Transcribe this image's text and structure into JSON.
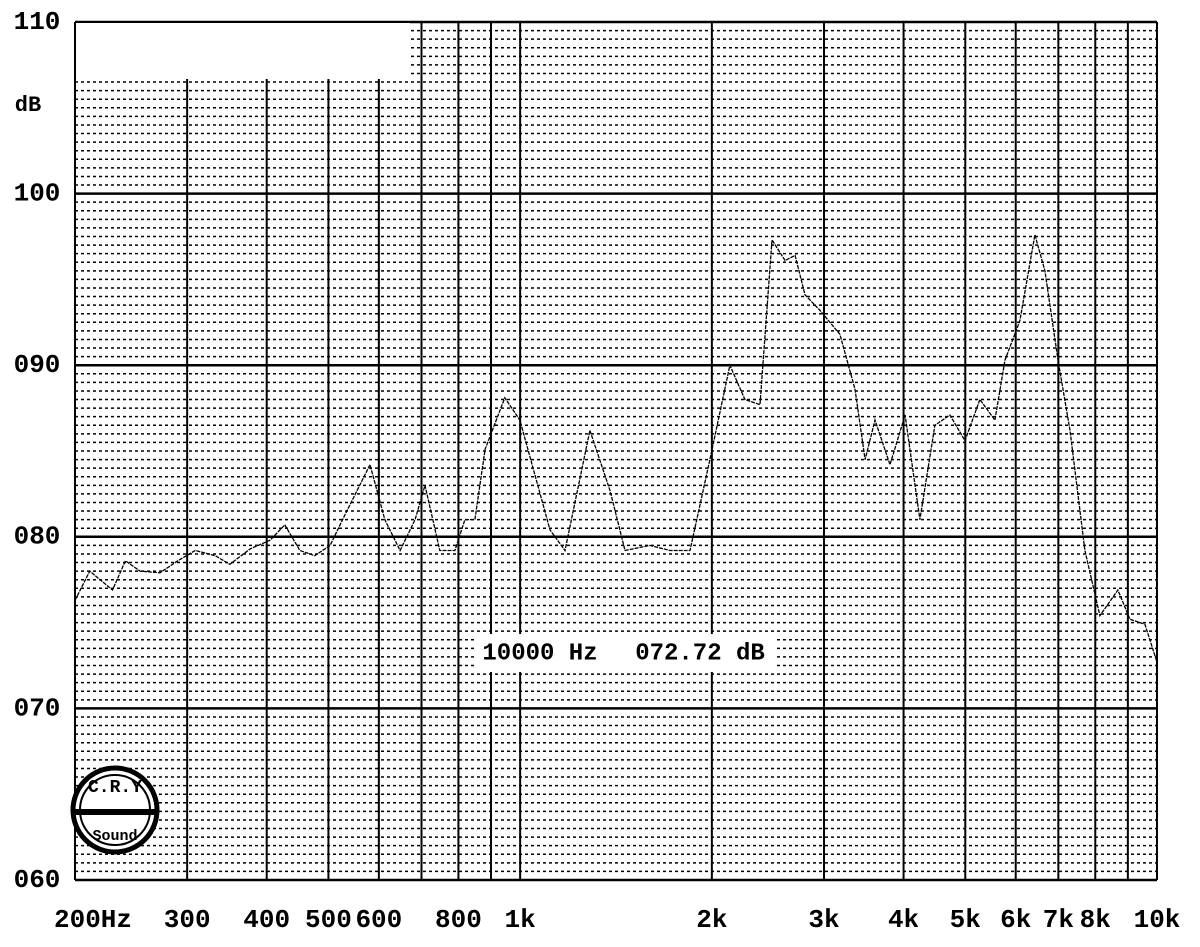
{
  "chart_data": {
    "type": "line",
    "y_label": "dB",
    "color": "#000000",
    "log_x": true,
    "grid": true,
    "ygrid_minor_step": 0.5,
    "xlim": [
      200,
      10000
    ],
    "ylim": [
      60,
      110
    ],
    "yticks": [
      110,
      100,
      {
        "value": 90,
        "label": "090"
      },
      {
        "value": 80,
        "label": "080"
      },
      {
        "value": 70,
        "label": "070"
      },
      {
        "value": 60,
        "label": "060"
      }
    ],
    "xticks": [
      {
        "value": 200,
        "label": "200Hz"
      },
      300,
      400,
      500,
      600,
      800,
      {
        "value": 1000,
        "label": "1k"
      },
      {
        "value": 2000,
        "label": "2k"
      },
      {
        "value": 3000,
        "label": "3k"
      },
      {
        "value": 4000,
        "label": "4k"
      },
      {
        "value": 5000,
        "label": "5k"
      },
      {
        "value": 6000,
        "label": "6k"
      },
      {
        "value": 7000,
        "label": "7k"
      },
      {
        "value": 8000,
        "label": "8k"
      },
      {
        "value": 10000,
        "label": "10k"
      }
    ],
    "xgrid": [
      200,
      300,
      400,
      500,
      600,
      700,
      800,
      900,
      1000,
      2000,
      3000,
      4000,
      5000,
      6000,
      7000,
      8000,
      9000,
      10000
    ],
    "x": [
      200,
      211,
      219,
      229,
      240,
      253,
      272,
      290,
      309,
      332,
      350,
      377,
      405,
      427,
      451,
      476,
      503,
      531,
      581,
      613,
      648,
      684,
      709,
      748,
      790,
      819,
      849,
      881,
      946,
      999,
      1114,
      1176,
      1287,
      1384,
      1461,
      1599,
      1719,
      1848,
      1986,
      2135,
      2254,
      2380,
      2486,
      2606,
      2702,
      2801,
      2956,
      3178,
      3356,
      3480,
      3608,
      3808,
      4022,
      4244,
      4480,
      4730,
      4994,
      5272,
      5566,
      5772,
      6092,
      6432,
      6668,
      6990,
      7300,
      7706,
      8136,
      8682,
      9068,
      9572,
      10000
    ],
    "values": [
      76.3,
      78.0,
      77.5,
      76.9,
      78.6,
      78.0,
      77.9,
      78.6,
      79.2,
      78.9,
      78.4,
      79.3,
      79.8,
      80.7,
      79.2,
      78.9,
      79.5,
      81.3,
      84.2,
      81.0,
      79.2,
      81.0,
      83.0,
      79.2,
      79.2,
      81.0,
      81.0,
      85.1,
      88.1,
      86.8,
      80.4,
      79.2,
      86.2,
      82.7,
      79.2,
      79.5,
      79.2,
      79.2,
      84.5,
      90.0,
      88.0,
      87.7,
      97.3,
      96.1,
      96.4,
      94.1,
      93.2,
      91.8,
      88.6,
      84.5,
      86.8,
      84.2,
      87.1,
      81.0,
      86.5,
      87.1,
      85.6,
      88.0,
      86.8,
      90.3,
      92.6,
      97.6,
      95.5,
      90.3,
      86.2,
      79.2,
      75.4,
      76.9,
      75.2,
      74.9,
      72.7
    ],
    "annotation": {
      "frequency": "10000 Hz",
      "level": "072.72 dB"
    },
    "logo": {
      "top": "C.R.Y",
      "bottom": "Sound"
    }
  }
}
